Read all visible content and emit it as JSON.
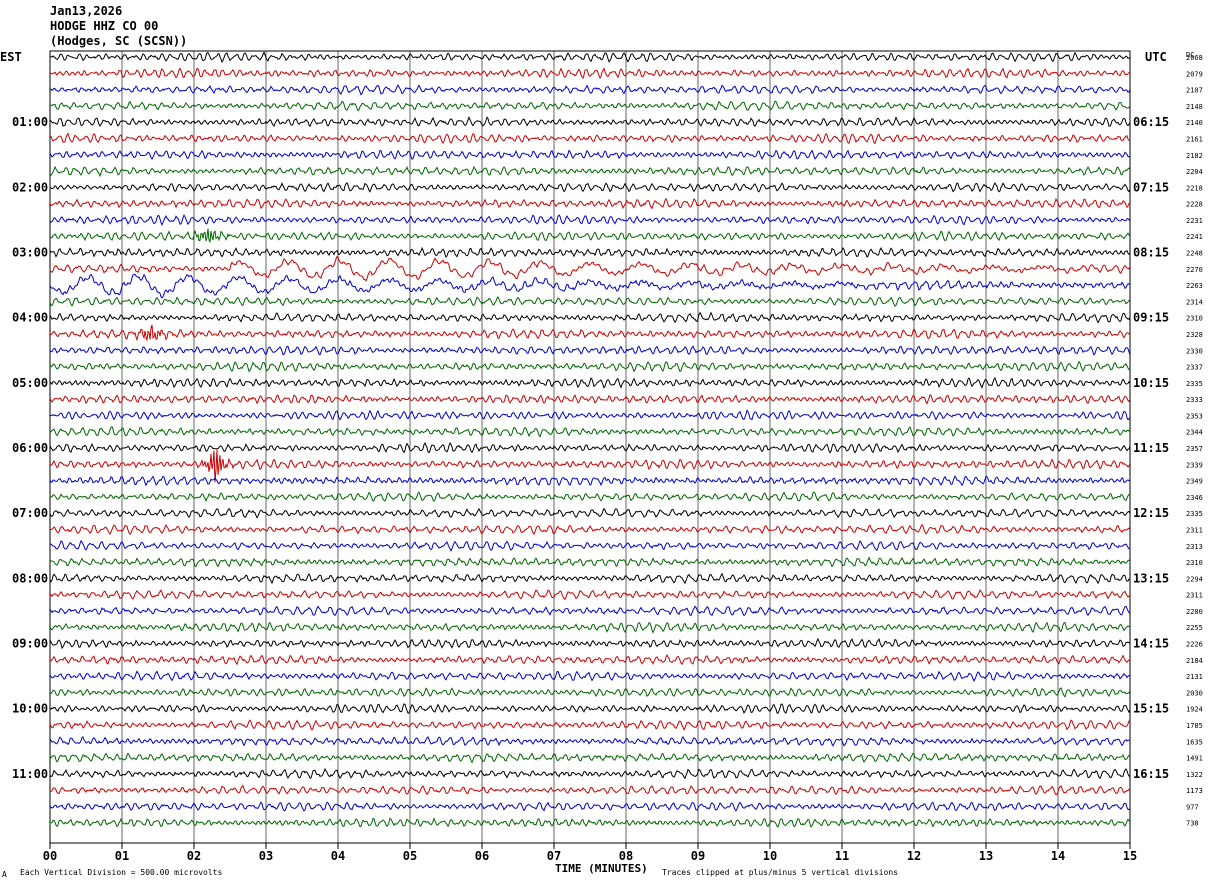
{
  "header": {
    "date": "Jan13,2026",
    "station": "HODGE HHZ CO 00",
    "location": "(Hodges, SC (SCSN))"
  },
  "axes": {
    "left_label": "EST",
    "right_label": "UTC",
    "dc_label": "DC",
    "x_title": "TIME (MINUTES)"
  },
  "footer": {
    "scale_note": "Each Vertical Division =  500.00 microvolts",
    "clip_note": "Traces clipped at plus/minus 5 vertical divisions",
    "marker": "A"
  },
  "colors": {
    "trace_cycle": [
      "#000000",
      "#cc0000",
      "#0000cc",
      "#006600"
    ],
    "grid": "#000000"
  },
  "chart_data": {
    "type": "line",
    "subtype": "helicorder",
    "x_range": [
      0,
      15
    ],
    "x_ticks": [
      "00",
      "01",
      "02",
      "03",
      "04",
      "05",
      "06",
      "07",
      "08",
      "09",
      "10",
      "11",
      "12",
      "13",
      "14",
      "15"
    ],
    "left_hour_labels": [
      "01:00",
      "02:00",
      "03:00",
      "04:00",
      "05:00",
      "06:00",
      "07:00",
      "08:00",
      "09:00",
      "10:00",
      "11:00"
    ],
    "right_hour_labels": [
      "06:15",
      "07:15",
      "08:15",
      "09:15",
      "10:15",
      "11:15",
      "12:15",
      "13:15",
      "14:15",
      "15:15",
      "16:15"
    ],
    "trace_count": 48,
    "dc_offsets": [
      "2068",
      "2079",
      "2107",
      "2148",
      "2140",
      "2161",
      "2182",
      "2204",
      "2218",
      "2228",
      "2231",
      "2241",
      "2248",
      "2270",
      "2263",
      "2314",
      "2310",
      "2328",
      "2330",
      "2337",
      "2335",
      "2333",
      "2353",
      "2344",
      "2357",
      "2339",
      "2349",
      "2346",
      "2335",
      "2311",
      "2313",
      "2310",
      "2294",
      "2311",
      "2280",
      "2255",
      "2226",
      "2184",
      "2131",
      "2030",
      "1924",
      "1785",
      "1635",
      "1491",
      "1322",
      "1173",
      "977",
      "738"
    ],
    "events": [
      {
        "trace": 11,
        "minute": 2.2,
        "note": "local burst"
      },
      {
        "trace": 13,
        "minute": 4.5,
        "note": "long-period wave train"
      },
      {
        "trace": 14,
        "minute": 1.5,
        "note": "long-period wave train"
      },
      {
        "trace": 17,
        "minute": 1.4,
        "note": "spike"
      },
      {
        "trace": 25,
        "minute": 2.3,
        "note": "large spike"
      }
    ]
  }
}
